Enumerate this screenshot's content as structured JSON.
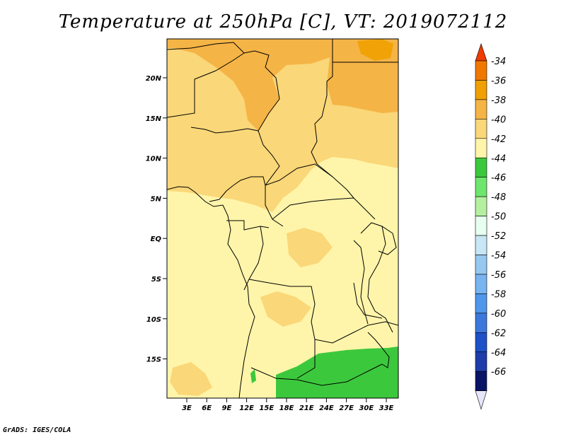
{
  "title": "Temperature at 250hPa [C], VT: 2019072112",
  "credit": "GrADS: IGES/COLA",
  "lat_ticks": [
    "20N",
    "15N",
    "10N",
    "5N",
    "EQ",
    "5S",
    "10S",
    "15S"
  ],
  "lon_ticks": [
    "3E",
    "6E",
    "9E",
    "12E",
    "15E",
    "18E",
    "21E",
    "24E",
    "27E",
    "30E",
    "33E"
  ],
  "colorbar": {
    "labels": [
      "-34",
      "-36",
      "-38",
      "-40",
      "-42",
      "-44",
      "-46",
      "-48",
      "-50",
      "-52",
      "-54",
      "-56",
      "-58",
      "-60",
      "-62",
      "-64",
      "-66"
    ],
    "colors": [
      "#f03c00",
      "#f07800",
      "#f0a000",
      "#f5b446",
      "#fad778",
      "#fff5aa",
      "#3cc83c",
      "#6ee66e",
      "#b4f0a0",
      "#e6fff0",
      "#c8e6f5",
      "#96c8f0",
      "#78b4f0",
      "#5096eb",
      "#3c78dc",
      "#1e50c8",
      "#1e3caa",
      "#0a1464"
    ],
    "cap_colors": {
      "top": "#f03c00",
      "bottom": "#e6e6fa"
    }
  },
  "field_colors": {
    "c38": "#f5b446",
    "c40": "#fad778",
    "c42": "#fff5aa",
    "c44": "#3cc83c"
  }
}
